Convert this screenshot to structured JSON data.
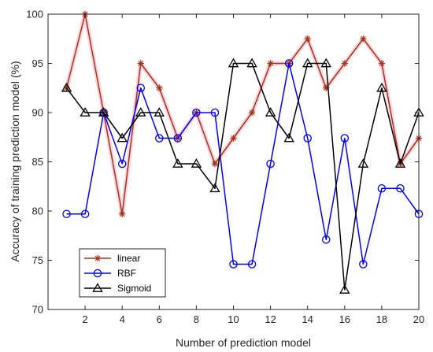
{
  "chart_data": {
    "type": "line",
    "xlabel": "Number of prediction model",
    "ylabel": "Accuracy of training prediction model  (%)",
    "xlim": [
      0,
      20
    ],
    "ylim": [
      70,
      100
    ],
    "xticks": [
      2,
      4,
      6,
      8,
      10,
      12,
      14,
      16,
      18,
      20
    ],
    "yticks": [
      70,
      75,
      80,
      85,
      90,
      95,
      100
    ],
    "x": [
      1,
      2,
      3,
      4,
      5,
      6,
      7,
      8,
      9,
      10,
      11,
      12,
      13,
      14,
      15,
      16,
      17,
      18,
      19,
      20
    ],
    "legend_position": "bottom-left",
    "grid": false,
    "series": [
      {
        "name": "linear",
        "color": "#a8301a",
        "marker": "star",
        "values": [
          92.5,
          100,
          90,
          79.7,
          95,
          92.5,
          87.4,
          90,
          84.8,
          87.4,
          90,
          95,
          95,
          97.5,
          92.5,
          95,
          97.5,
          95,
          84.8,
          87.4
        ]
      },
      {
        "name": "RBF",
        "color": "#0000ff",
        "marker": "circle",
        "values": [
          79.7,
          79.7,
          90,
          84.8,
          92.5,
          87.4,
          87.4,
          90,
          90,
          74.6,
          74.6,
          84.8,
          95,
          87.4,
          77.1,
          87.4,
          74.6,
          82.3,
          82.3,
          79.7
        ]
      },
      {
        "name": "Sigmoid",
        "color": "#000000",
        "marker": "triangle",
        "values": [
          92.5,
          90,
          90,
          87.4,
          90,
          90,
          84.8,
          84.8,
          82.3,
          95,
          95,
          90,
          87.4,
          95,
          95,
          72,
          84.8,
          92.5,
          84.8,
          90
        ]
      }
    ]
  }
}
